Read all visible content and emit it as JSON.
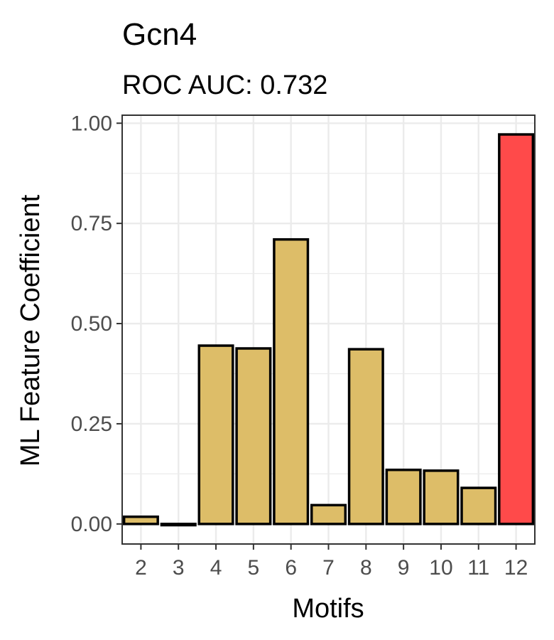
{
  "chart_data": {
    "type": "bar",
    "title": "Gcn4",
    "subtitle": "ROC AUC: 0.732",
    "xlabel": "Motifs",
    "ylabel": "ML Feature Coefficient",
    "categories": [
      "2",
      "3",
      "4",
      "5",
      "6",
      "7",
      "8",
      "9",
      "10",
      "11",
      "12"
    ],
    "values": [
      0.018,
      -0.003,
      0.445,
      0.438,
      0.71,
      0.047,
      0.436,
      0.135,
      0.133,
      0.09,
      0.972
    ],
    "ylim": [
      -0.05,
      1.02
    ],
    "yticks": [
      0.0,
      0.25,
      0.5,
      0.75,
      1.0
    ],
    "ytick_labels": [
      "0.00",
      "0.25",
      "0.50",
      "0.75",
      "1.00"
    ],
    "grid": true,
    "colors": {
      "default_bar": "#DDBD68",
      "highlight_bar": "#FF4A4A",
      "bar_outline": "#000000",
      "grid": "#ebebeb",
      "panel_border": "#333333"
    },
    "highlight_index": 10
  }
}
